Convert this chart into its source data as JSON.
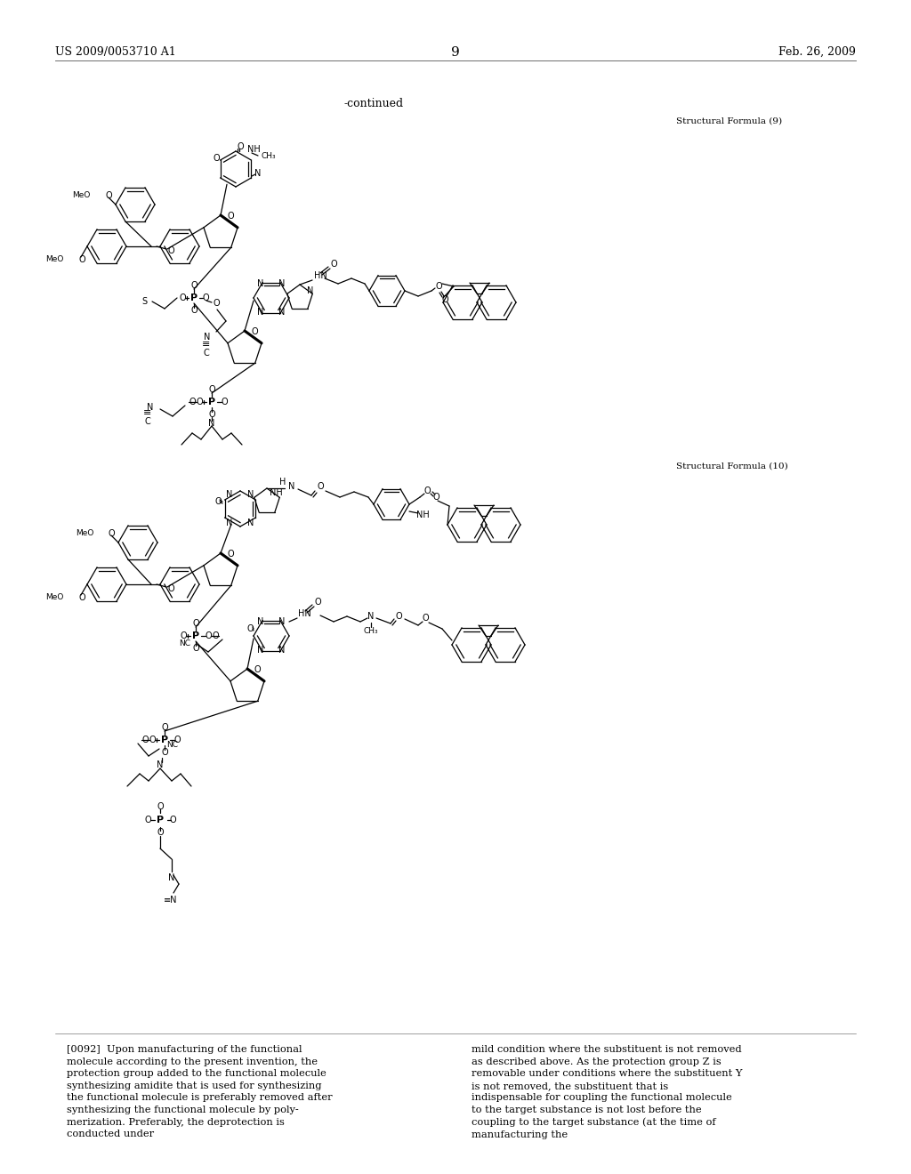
{
  "patent_number": "US 2009/0053710 A1",
  "date": "Feb. 26, 2009",
  "page_number": "9",
  "continued_label": "-continued",
  "sf9_label": "Structural Formula (9)",
  "sf10_label": "Structural Formula (10)",
  "para_num": "[0092]",
  "left_body": "Upon manufacturing of the functional molecule according to the present invention, the protection group added to the functional molecule synthesizing amidite that is used for synthesizing the functional molecule is preferably removed after synthesizing the functional molecule by poly-merization. Preferably, the deprotection is conducted under",
  "right_body": "mild condition where the substituent is not removed as described above. As the protection group Z is removable under conditions where the substituent Y is not removed, the substituent that is indispensable for coupling the functional molecule to the target substance is not lost before the coupling to the target substance (at the time of manufacturing the",
  "bg": "#ffffff",
  "fg": "#000000",
  "fig_w": 10.24,
  "fig_h": 13.2,
  "dpi": 100
}
